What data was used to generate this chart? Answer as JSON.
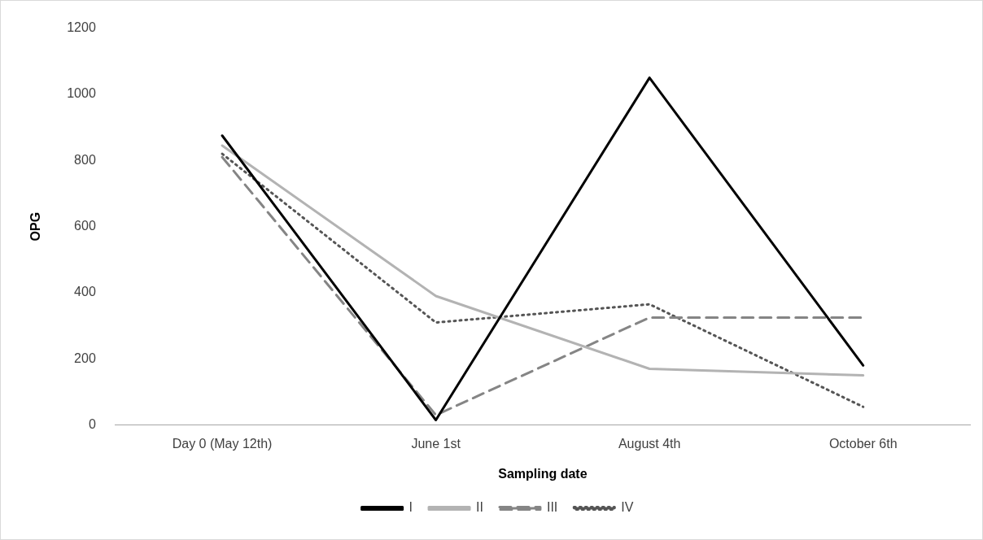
{
  "chart_data": {
    "type": "line",
    "xlabel": "Sampling date",
    "ylabel": "OPG",
    "categories": [
      "Day 0 (May 12th)",
      "June 1st",
      "August 4th",
      "October 6th"
    ],
    "series": [
      {
        "name": "I",
        "color": "#000000",
        "line_style": "solid",
        "values": [
          875,
          15,
          1050,
          180
        ]
      },
      {
        "name": "II",
        "color": "#b3b3b3",
        "line_style": "solid",
        "values": [
          845,
          390,
          170,
          150
        ]
      },
      {
        "name": "III",
        "color": "#858585",
        "line_style": "dashed",
        "values": [
          810,
          30,
          325,
          325
        ]
      },
      {
        "name": "IV",
        "color": "#555555",
        "line_style": "dotted",
        "values": [
          820,
          310,
          365,
          55
        ]
      }
    ],
    "ylim": [
      0,
      1200
    ],
    "yticks": [
      0,
      200,
      400,
      600,
      800,
      1000,
      1200
    ],
    "grid": false,
    "legend": "bottom",
    "marker": "none"
  }
}
